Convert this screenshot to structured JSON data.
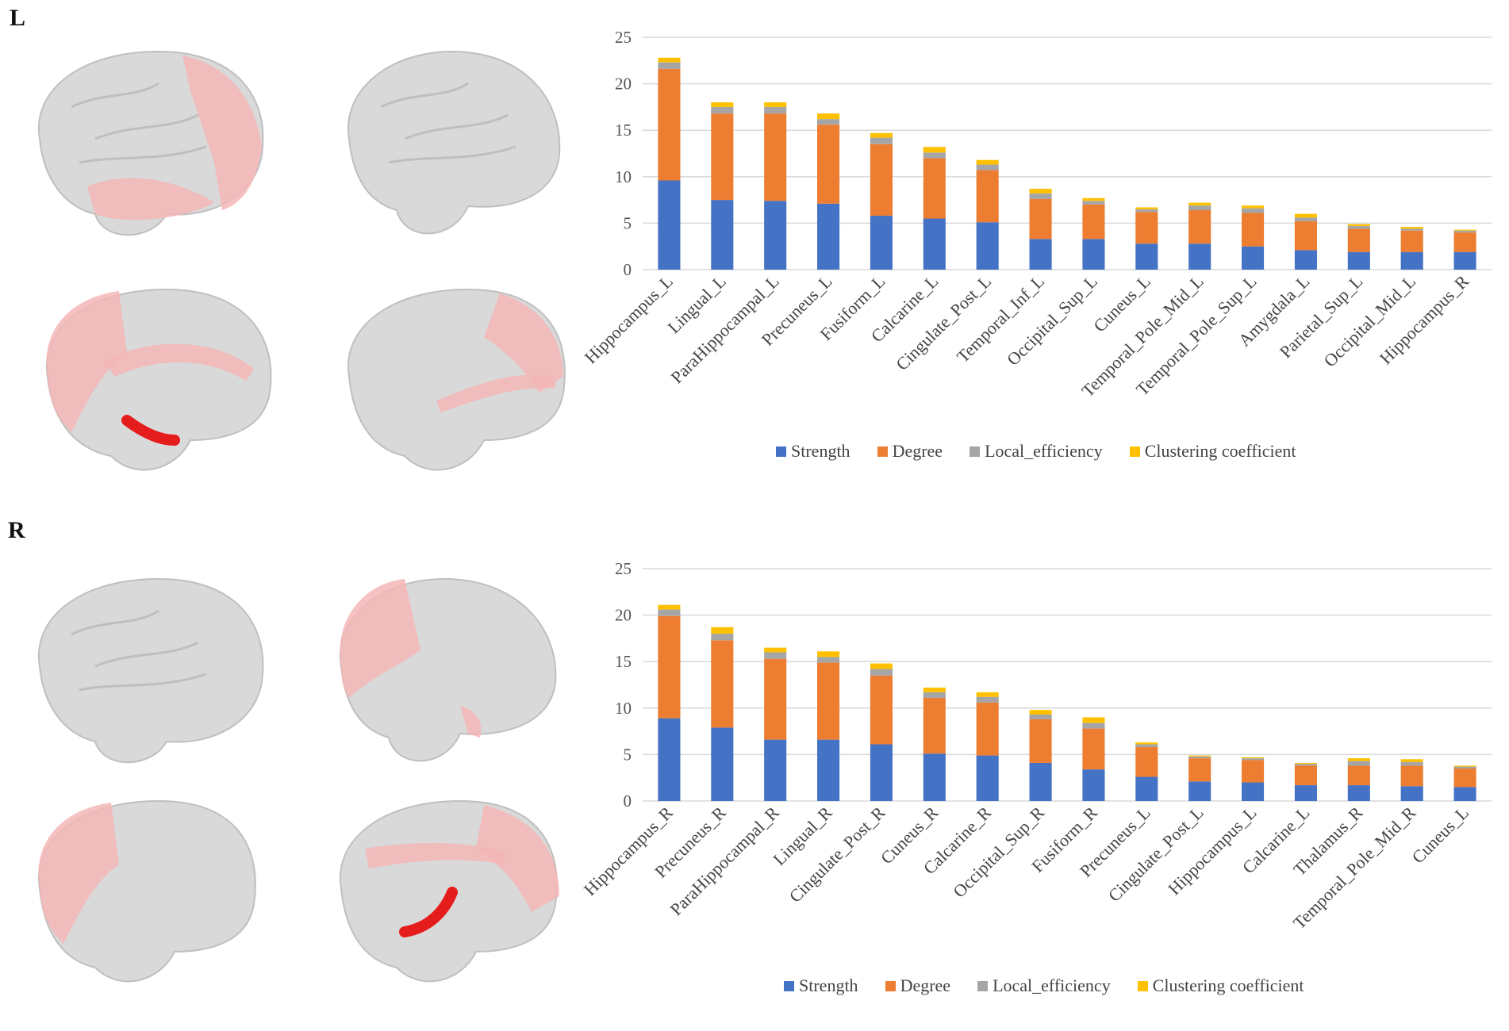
{
  "colors": {
    "strength": "#4472C4",
    "degree": "#ED7D31",
    "local_efficiency": "#A5A5A5",
    "clustering": "#FFC000",
    "brain_gray": "#d9d9d9",
    "brain_highlight": "#f4b6b6",
    "brain_seed": "#e51c1c"
  },
  "panels": {
    "top_label": "L",
    "bottom_label": "R"
  },
  "legend": {
    "strength": "Strength",
    "degree": "Degree",
    "local_efficiency": "Local_efficiency",
    "clustering": "Clustering coefficient"
  },
  "chart_data": [
    {
      "type": "bar",
      "stacked": true,
      "panel": "L",
      "ylim": [
        0,
        25
      ],
      "yticks": [
        0,
        5,
        10,
        15,
        20,
        25
      ],
      "grid": true,
      "legend_position": "bottom",
      "categories": [
        "Hippocampus_L",
        "Lingual_L",
        "ParaHippocampal_L",
        "Precuneus_L",
        "Fusiform_L",
        "Calcarine_L",
        "Cingulate_Post_L",
        "Temporal_Inf_L",
        "Occipital_Sup_L",
        "Cuneus_L",
        "Temporal_Pole_Mid_L",
        "Temporal_Pole_Sup_L",
        "Amygdala_L",
        "Parietal_Sup_L",
        "Occipital_Mid_L",
        "Hippocampus_R"
      ],
      "series": [
        {
          "name": "Strength",
          "values": [
            9.6,
            7.5,
            7.4,
            7.1,
            5.8,
            5.5,
            5.1,
            3.3,
            3.3,
            2.8,
            2.8,
            2.5,
            2.1,
            1.9,
            1.9,
            1.9
          ]
        },
        {
          "name": "Degree",
          "values": [
            12.0,
            9.3,
            9.4,
            8.5,
            7.7,
            6.5,
            5.6,
            4.3,
            3.7,
            3.4,
            3.6,
            3.6,
            3.1,
            2.5,
            2.3,
            2.1
          ]
        },
        {
          "name": "Local_efficiency",
          "values": [
            0.7,
            0.7,
            0.7,
            0.6,
            0.7,
            0.6,
            0.6,
            0.6,
            0.4,
            0.3,
            0.5,
            0.5,
            0.4,
            0.3,
            0.2,
            0.2
          ]
        },
        {
          "name": "Clustering coefficient",
          "values": [
            0.5,
            0.5,
            0.5,
            0.6,
            0.5,
            0.6,
            0.5,
            0.5,
            0.3,
            0.2,
            0.3,
            0.3,
            0.4,
            0.2,
            0.2,
            0.1
          ]
        }
      ]
    },
    {
      "type": "bar",
      "stacked": true,
      "panel": "R",
      "ylim": [
        0,
        25
      ],
      "yticks": [
        0,
        5,
        10,
        15,
        20,
        25
      ],
      "grid": true,
      "legend_position": "bottom",
      "categories": [
        "Hippocampus_R",
        "Precuneus_R",
        "ParaHippocampal_R",
        "Lingual_R",
        "Cingulate_Post_R",
        "Cuneus_R",
        "Calcarine_R",
        "Occipital_Sup_R",
        "Fusiform_R",
        "Precuneus_L",
        "Cingulate_Post_L",
        "Hippocampus_L",
        "Calcarine_L",
        "Thalamus_R",
        "Temporal_Pole_Mid_R",
        "Cuneus_L"
      ],
      "series": [
        {
          "name": "Strength",
          "values": [
            8.9,
            7.9,
            6.6,
            6.6,
            6.1,
            5.1,
            4.9,
            4.1,
            3.4,
            2.6,
            2.1,
            2.0,
            1.7,
            1.7,
            1.6,
            1.5
          ]
        },
        {
          "name": "Degree",
          "values": [
            11.0,
            9.4,
            8.7,
            8.3,
            7.4,
            6.0,
            5.7,
            4.7,
            4.4,
            3.2,
            2.5,
            2.4,
            2.1,
            2.1,
            2.2,
            2.0
          ]
        },
        {
          "name": "Local_efficiency",
          "values": [
            0.7,
            0.7,
            0.7,
            0.6,
            0.7,
            0.6,
            0.6,
            0.5,
            0.6,
            0.3,
            0.2,
            0.2,
            0.2,
            0.5,
            0.4,
            0.2
          ]
        },
        {
          "name": "Clustering coefficient",
          "values": [
            0.5,
            0.7,
            0.5,
            0.6,
            0.6,
            0.5,
            0.5,
            0.5,
            0.6,
            0.2,
            0.1,
            0.1,
            0.1,
            0.3,
            0.3,
            0.1
          ]
        }
      ]
    }
  ]
}
